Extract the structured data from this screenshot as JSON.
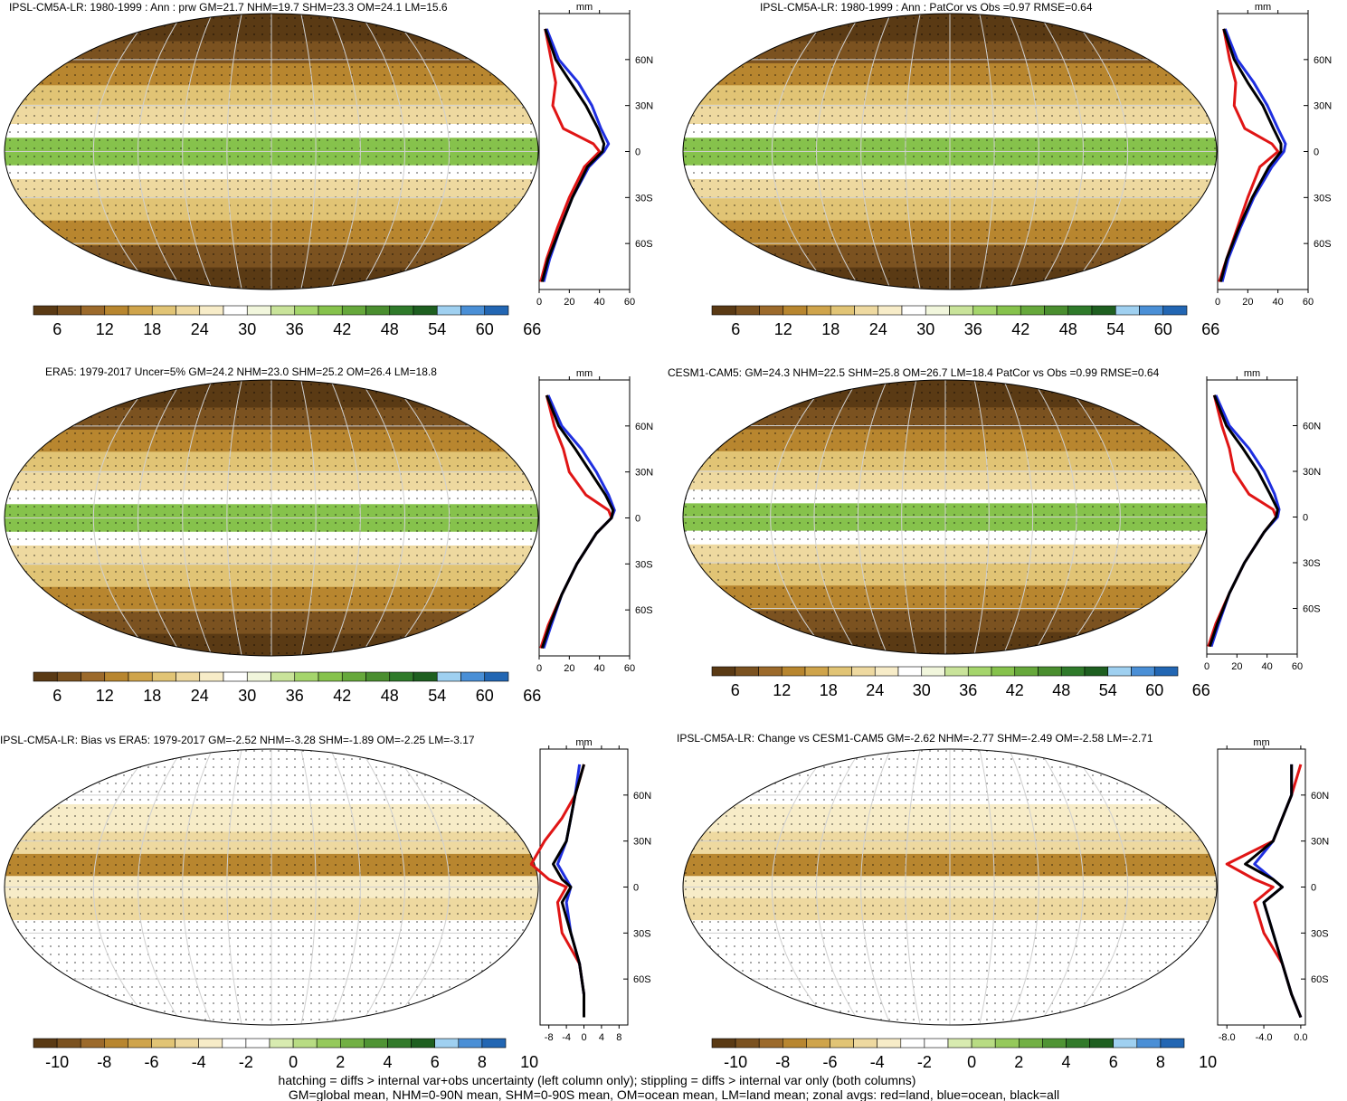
{
  "colors": {
    "precip": [
      "#5a3a14",
      "#7b5220",
      "#9c6a2b",
      "#b8862f",
      "#cfa44b",
      "#e1c475",
      "#eed9a0",
      "#f7ecc8",
      "#ffffff",
      "#f1f6dc",
      "#c9e39a",
      "#a5d56c",
      "#86c24c",
      "#66a83b",
      "#4a8e2f",
      "#2f7a2a",
      "#1e5f20",
      "#9fd0f0",
      "#4a8fd6",
      "#2266b3"
    ],
    "diff": [
      "#5a3a14",
      "#7b5220",
      "#9c6a2b",
      "#b8862f",
      "#cfa44b",
      "#e1c475",
      "#eed9a0",
      "#f7ecc8",
      "#ffffff",
      "#ffffff",
      "#d8ebb0",
      "#b8dc83",
      "#95c95b",
      "#72b044",
      "#4f9434",
      "#327a2a",
      "#1e5f20",
      "#9fd0f0",
      "#4a8fd6",
      "#2266b3"
    ],
    "ocean_line": "#1f2fe0",
    "land_line": "#e01515",
    "all_line": "#000000"
  },
  "panels": [
    {
      "title": "IPSL-CM5A-LR: 1980-1999 : Ann : prw GM=21.7 NHM=19.7 SHM=23.3 OM=24.1 LM=15.6",
      "colorbar_labels": [
        "6",
        "12",
        "18",
        "24",
        "30",
        "36",
        "42",
        "48",
        "54",
        "60",
        "66"
      ],
      "profile_unit": "mm",
      "profile_x_labels": [
        "0",
        "20",
        "40",
        "60"
      ],
      "profile_y_labels": [
        "60N",
        "30N",
        "0",
        "30S",
        "60S"
      ]
    },
    {
      "title": "IPSL-CM5A-LR: 1980-1999 : Ann : PatCor vs Obs =0.97 RMSE=0.64",
      "colorbar_labels": [
        "6",
        "12",
        "18",
        "24",
        "30",
        "36",
        "42",
        "48",
        "54",
        "60",
        "66"
      ],
      "profile_unit": "mm",
      "profile_x_labels": [
        "0",
        "20",
        "40",
        "60"
      ],
      "profile_y_labels": [
        "60N",
        "30N",
        "0",
        "30S",
        "60S"
      ]
    },
    {
      "title": "ERA5: 1979-2017 Uncer=5% GM=24.2 NHM=23.0 SHM=25.2 OM=26.4 LM=18.8",
      "colorbar_labels": [
        "6",
        "12",
        "18",
        "24",
        "30",
        "36",
        "42",
        "48",
        "54",
        "60",
        "66"
      ],
      "profile_unit": "mm",
      "profile_x_labels": [
        "0",
        "20",
        "40",
        "60"
      ],
      "profile_y_labels": [
        "60N",
        "30N",
        "0",
        "30S",
        "60S"
      ]
    },
    {
      "title": "CESM1-CAM5: GM=24.3 NHM=22.5 SHM=25.8 OM=26.7 LM=18.4 PatCor vs Obs =0.99 RMSE=0.64",
      "colorbar_labels": [
        "6",
        "12",
        "18",
        "24",
        "30",
        "36",
        "42",
        "48",
        "54",
        "60",
        "66"
      ],
      "profile_unit": "mm",
      "profile_x_labels": [
        "0",
        "20",
        "40",
        "60"
      ],
      "profile_y_labels": [
        "60N",
        "30N",
        "0",
        "30S",
        "60S"
      ]
    },
    {
      "title": "IPSL-CM5A-LR: Bias vs ERA5: 1979-2017 GM=-2.52 NHM=-3.28 SHM=-1.89 OM=-2.25 LM=-3.17",
      "colorbar_labels": [
        "-10",
        "-8",
        "-6",
        "-4",
        "-2",
        "0",
        "2",
        "4",
        "6",
        "8",
        "10"
      ],
      "profile_unit": "mm",
      "profile_x_labels": [
        "-8",
        "-4",
        "0",
        "4",
        "8"
      ],
      "profile_y_labels": [
        "60N",
        "30N",
        "0",
        "30S",
        "60S"
      ]
    },
    {
      "title": "IPSL-CM5A-LR: Change vs CESM1-CAM5 GM=-2.62 NHM=-2.77 SHM=-2.49 OM=-2.58 LM=-2.71",
      "colorbar_labels": [
        "-10",
        "-8",
        "-6",
        "-4",
        "-2",
        "0",
        "2",
        "4",
        "6",
        "8",
        "10"
      ],
      "profile_unit": "mm",
      "profile_x_labels": [
        "-8.0",
        "-4.0",
        "0.0"
      ],
      "profile_y_labels": [
        "60N",
        "30N",
        "0",
        "30S",
        "60S"
      ]
    }
  ],
  "footer": {
    "line1": "hatching = diffs > internal var+obs uncertainty (left column only); stippling = diffs > internal var only (both columns)",
    "line2": "GM=global mean, NHM=0-90N mean, SHM=0-90S mean, OM=ocean mean, LM=land mean; zonal avgs: red=land, blue=ocean, black=all"
  },
  "chart_data": [
    {
      "type": "line",
      "title": "IPSL-CM5A-LR: 1980-1999 : Ann : prw GM=21.7 NHM=19.7 SHM=23.3 OM=24.1 LM=15.6",
      "xlabel": "mm",
      "xlim": [
        0,
        60
      ],
      "ylim": [
        -90,
        90
      ],
      "y": [
        80,
        60,
        45,
        30,
        15,
        5,
        0,
        -10,
        -30,
        -50,
        -70,
        -85
      ],
      "series": [
        {
          "name": "land",
          "values": [
            4,
            8,
            11,
            9,
            16,
            36,
            40,
            30,
            20,
            12,
            5,
            1
          ]
        },
        {
          "name": "ocean",
          "values": [
            5,
            13,
            26,
            35,
            41,
            46,
            43,
            33,
            22,
            14,
            7,
            3
          ]
        },
        {
          "name": "all",
          "values": [
            4,
            11,
            21,
            31,
            39,
            43,
            42,
            32,
            22,
            14,
            6,
            2
          ]
        }
      ]
    },
    {
      "type": "line",
      "title": "IPSL-CM5A-LR: 1980-1999 : Ann : PatCor vs Obs =0.97 RMSE=0.64",
      "xlabel": "mm",
      "xlim": [
        0,
        60
      ],
      "ylim": [
        -90,
        90
      ],
      "y": [
        80,
        60,
        45,
        30,
        15,
        5,
        0,
        -10,
        -30,
        -50,
        -70,
        -85
      ],
      "series": [
        {
          "name": "land",
          "values": [
            4,
            8,
            12,
            11,
            18,
            36,
            40,
            28,
            20,
            13,
            6,
            1
          ]
        },
        {
          "name": "ocean",
          "values": [
            5,
            13,
            24,
            33,
            40,
            45,
            44,
            36,
            24,
            15,
            7,
            3
          ]
        },
        {
          "name": "all",
          "values": [
            4,
            11,
            20,
            30,
            37,
            42,
            42,
            34,
            23,
            14,
            6,
            2
          ]
        }
      ]
    },
    {
      "type": "line",
      "title": "ERA5: 1979-2017 Uncer=5% GM=24.2 NHM=23.0 SHM=25.2 OM=26.4 LM=18.8",
      "xlabel": "mm",
      "xlim": [
        0,
        60
      ],
      "ylim": [
        -90,
        90
      ],
      "y": [
        80,
        60,
        45,
        30,
        15,
        5,
        0,
        -10,
        -30,
        -50,
        -70,
        -85
      ],
      "series": [
        {
          "name": "land",
          "values": [
            5,
            10,
            16,
            20,
            31,
            46,
            48,
            38,
            25,
            15,
            6,
            1
          ]
        },
        {
          "name": "ocean",
          "values": [
            6,
            15,
            28,
            38,
            46,
            50,
            48,
            38,
            25,
            15,
            8,
            3
          ]
        },
        {
          "name": "all",
          "values": [
            5,
            13,
            24,
            34,
            44,
            49,
            48,
            38,
            25,
            15,
            7,
            2
          ]
        }
      ]
    },
    {
      "type": "line",
      "title": "CESM1-CAM5: GM=24.3 NHM=22.5 SHM=25.8 OM=26.7 LM=18.4 PatCor vs Obs =0.99 RMSE=0.64",
      "xlabel": "mm",
      "xlim": [
        0,
        60
      ],
      "ylim": [
        -90,
        90
      ],
      "y": [
        80,
        60,
        45,
        30,
        15,
        5,
        0,
        -10,
        -30,
        -50,
        -70,
        -85
      ],
      "series": [
        {
          "name": "land",
          "values": [
            5,
            10,
            15,
            18,
            28,
            44,
            46,
            38,
            25,
            15,
            6,
            1
          ]
        },
        {
          "name": "ocean",
          "values": [
            6,
            15,
            28,
            38,
            45,
            48,
            47,
            38,
            25,
            15,
            8,
            3
          ]
        },
        {
          "name": "all",
          "values": [
            5,
            13,
            24,
            34,
            42,
            47,
            46,
            38,
            25,
            15,
            7,
            2
          ]
        }
      ]
    },
    {
      "type": "line",
      "title": "IPSL-CM5A-LR: Bias vs ERA5: 1979-2017 GM=-2.52 NHM=-3.28 SHM=-1.89 OM=-2.25 LM=-3.17",
      "xlabel": "mm",
      "xlim": [
        -10,
        10
      ],
      "ylim": [
        -90,
        90
      ],
      "y": [
        80,
        60,
        45,
        30,
        15,
        5,
        0,
        -10,
        -30,
        -50,
        -70,
        -85
      ],
      "series": [
        {
          "name": "land",
          "values": [
            0,
            -2,
            -5,
            -9,
            -12,
            -8,
            -4,
            -6,
            -5,
            -1,
            0,
            0
          ]
        },
        {
          "name": "ocean",
          "values": [
            -1,
            -2,
            -3,
            -4,
            -6,
            -4,
            -3,
            -4,
            -3,
            -1,
            0,
            0
          ]
        },
        {
          "name": "all",
          "values": [
            0,
            -2,
            -3,
            -4,
            -7,
            -5,
            -3,
            -5,
            -3,
            -1,
            0,
            0
          ]
        }
      ]
    },
    {
      "type": "line",
      "title": "IPSL-CM5A-LR: Change vs CESM1-CAM5 GM=-2.62 NHM=-2.77 SHM=-2.49 OM=-2.58 LM=-2.71",
      "xlabel": "mm",
      "xlim": [
        -9,
        0.5
      ],
      "ylim": [
        -90,
        90
      ],
      "y": [
        80,
        60,
        45,
        30,
        15,
        5,
        0,
        -10,
        -30,
        -50,
        -70,
        -85
      ],
      "series": [
        {
          "name": "land",
          "values": [
            0,
            -1,
            -2,
            -3,
            -8,
            -5,
            -3,
            -5,
            -4,
            -2,
            -1,
            0
          ]
        },
        {
          "name": "ocean",
          "values": [
            -1,
            -1,
            -2,
            -3,
            -5,
            -3,
            -2,
            -4,
            -3,
            -2,
            -1,
            0
          ]
        },
        {
          "name": "all",
          "values": [
            -1,
            -1,
            -2,
            -3,
            -6,
            -3,
            -2,
            -4,
            -3,
            -2,
            -1,
            0
          ]
        }
      ]
    }
  ]
}
